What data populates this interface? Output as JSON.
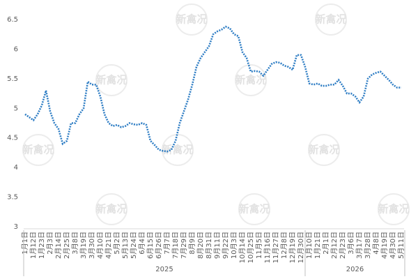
{
  "watermark": "新禽况",
  "chart_data": {
    "type": "line",
    "categories": [
      "1月1日",
      null,
      "1月12日",
      null,
      "1月23日",
      null,
      "2月3日",
      null,
      "2月14日",
      null,
      "2月25日",
      null,
      "3月8日",
      null,
      "3月19日",
      null,
      "3月30日",
      null,
      "4月10日",
      null,
      "4月21日",
      null,
      "5月2日",
      null,
      "5月13日",
      null,
      "5月24日",
      null,
      "6月4日",
      null,
      "6月15日",
      null,
      "6月26日",
      null,
      "7月7日",
      null,
      "7月18日",
      null,
      "7月29日",
      null,
      "8月9日",
      null,
      "8月20日",
      null,
      "8月31日",
      null,
      "9月11日",
      null,
      "9月22日",
      null,
      "10月3日",
      null,
      "10月14日",
      null,
      "10月25日",
      null,
      "11月5日",
      null,
      "11月16日",
      null,
      "11月27日",
      null,
      "12月8日",
      null,
      "12月19日",
      null,
      "12月30日",
      null,
      "1月10日",
      null,
      "1月21日",
      null,
      "2月1日",
      null,
      "2月12日",
      null,
      "2月23日",
      null,
      "3月6日",
      null,
      "3月17日",
      null,
      "3月28日",
      null,
      "4月8日",
      null,
      "4月19日",
      null,
      "4月30日",
      null,
      "5月11日"
    ],
    "values": [
      4.9,
      4.85,
      4.8,
      4.9,
      5.05,
      5.3,
      4.95,
      4.75,
      4.65,
      4.4,
      4.45,
      4.75,
      4.75,
      4.9,
      5.0,
      5.45,
      5.4,
      5.4,
      5.2,
      4.9,
      4.75,
      4.7,
      4.72,
      4.68,
      4.7,
      4.75,
      4.73,
      4.72,
      4.75,
      4.72,
      4.45,
      4.38,
      4.3,
      4.28,
      4.27,
      4.3,
      4.45,
      4.75,
      4.95,
      5.15,
      5.4,
      5.7,
      5.85,
      5.95,
      6.05,
      6.25,
      6.3,
      6.33,
      6.38,
      6.35,
      6.25,
      6.22,
      5.95,
      5.85,
      5.62,
      5.63,
      5.62,
      5.55,
      5.65,
      5.75,
      5.78,
      5.77,
      5.72,
      5.7,
      5.65,
      5.9,
      5.9,
      5.7,
      5.42,
      5.4,
      5.42,
      5.38,
      5.38,
      5.4,
      5.4,
      5.48,
      5.38,
      5.25,
      5.25,
      5.2,
      5.1,
      5.2,
      5.5,
      5.57,
      5.6,
      5.62,
      5.55,
      5.48,
      5.4,
      5.35,
      5.35
    ],
    "years": [
      "2025",
      "2026"
    ],
    "color": "#2e7dc4",
    "ylim": [
      3,
      6.5
    ],
    "yticks": [
      3,
      3.5,
      4,
      4.5,
      5,
      5.5,
      6,
      6.5
    ]
  }
}
